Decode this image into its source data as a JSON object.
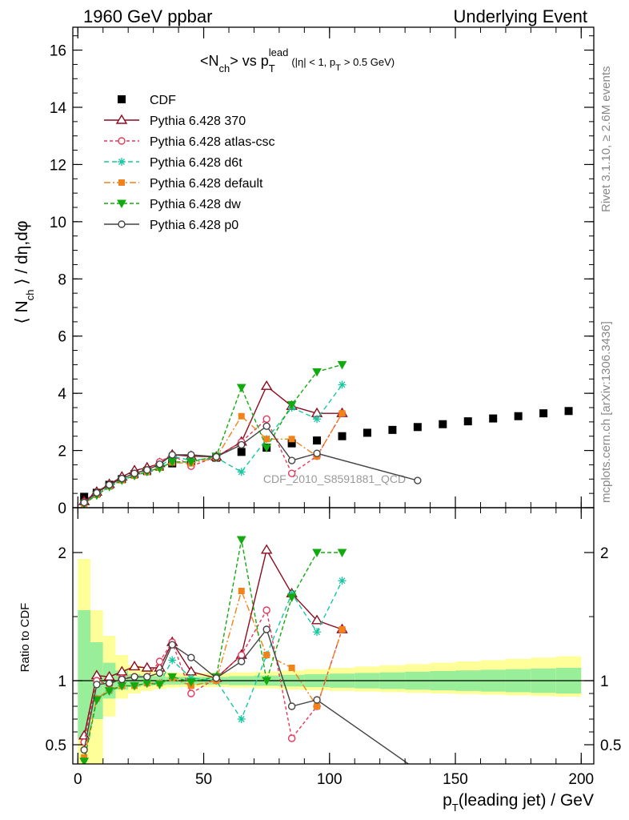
{
  "header": {
    "left": "1960 GeV ppbar",
    "right": "Underlying Event"
  },
  "side_labels": {
    "rivet": "Rivet 3.1.10, ≥ 2.6M events",
    "mcplots": "mcplots.cern.ch [arXiv:1306.3436]"
  },
  "watermark": "CDF_2010_S8591881_QCD",
  "chart_data": [
    {
      "type": "line",
      "panel": "main",
      "title": "<N_ch> vs p_T^lead (|η| < 1, p_T > 0.5 GeV)",
      "title_parts": {
        "a": "<N",
        "a_sub": "ch",
        "b": "> vs p",
        "b_sub": "T",
        "b_sup": "lead",
        "c": "(|η| < 1, p",
        "c_sub": "T",
        "d": "> 0.5 GeV)"
      },
      "ylabel": "⟨ N_ch ⟩ / dη,dφ",
      "ylabel_parts": {
        "a": "⟨ N",
        "sub": "ch",
        "b": " ⟩ / dη,dφ"
      },
      "xlim": [
        -2,
        205
      ],
      "ylim": [
        0,
        16.8
      ],
      "yticks": [
        "0",
        "2",
        "4",
        "6",
        "8",
        "10",
        "12",
        "14",
        "16"
      ],
      "legend_position": "top-left",
      "reference": {
        "name": "CDF",
        "color": "#000000",
        "x": [
          2.5,
          7.5,
          12.5,
          17.5,
          22.5,
          27.5,
          32.5,
          37.5,
          45,
          55,
          65,
          75,
          85,
          95,
          105,
          115,
          125,
          135,
          145,
          155,
          165,
          175,
          185,
          195
        ],
        "y": [
          0.38,
          0.52,
          0.8,
          1.0,
          1.17,
          1.28,
          1.43,
          1.55,
          1.62,
          1.75,
          1.95,
          2.1,
          2.25,
          2.35,
          2.5,
          2.62,
          2.72,
          2.82,
          2.92,
          3.02,
          3.12,
          3.2,
          3.3,
          3.38
        ]
      },
      "series": [
        {
          "name": "Pythia 6.428 370",
          "color": "#8b0c1e",
          "dash": "",
          "marker": "triangle",
          "x": [
            2.5,
            7.5,
            12.5,
            17.5,
            22.5,
            27.5,
            32.5,
            37.5,
            45,
            55,
            65,
            75,
            85,
            95,
            105
          ],
          "y": [
            0.22,
            0.55,
            0.82,
            1.08,
            1.3,
            1.4,
            1.55,
            1.85,
            1.8,
            1.78,
            2.3,
            4.25,
            3.55,
            3.3,
            3.3
          ]
        },
        {
          "name": "Pythia 6.428 atlas-csc",
          "color": "#e8365b",
          "dash": "4,3",
          "marker": "circle-open",
          "x": [
            2.5,
            7.5,
            12.5,
            17.5,
            22.5,
            27.5,
            32.5,
            37.5,
            45,
            55,
            65,
            75,
            85,
            95,
            105
          ],
          "y": [
            0.2,
            0.52,
            0.78,
            1.02,
            1.2,
            1.32,
            1.6,
            1.85,
            1.45,
            1.78,
            2.3,
            3.1,
            1.2,
            1.8,
            3.3
          ]
        },
        {
          "name": "Pythia 6.428 d6t",
          "color": "#16c7a0",
          "dash": "6,4",
          "marker": "star",
          "x": [
            2.5,
            7.5,
            12.5,
            17.5,
            22.5,
            27.5,
            32.5,
            37.5,
            45,
            55,
            65,
            75,
            85,
            95,
            105
          ],
          "y": [
            0.15,
            0.45,
            0.72,
            0.98,
            1.12,
            1.25,
            1.4,
            1.8,
            1.65,
            1.75,
            1.25,
            2.4,
            3.5,
            3.1,
            4.3
          ]
        },
        {
          "name": "Pythia 6.428 default",
          "color": "#f2821a",
          "dash": "8,3,2,3",
          "marker": "square",
          "x": [
            2.5,
            7.5,
            12.5,
            17.5,
            22.5,
            27.5,
            32.5,
            37.5,
            45,
            55,
            65,
            75,
            85,
            95,
            105
          ],
          "y": [
            0.14,
            0.45,
            0.75,
            0.96,
            1.12,
            1.26,
            1.4,
            1.58,
            1.55,
            1.75,
            3.2,
            2.4,
            2.4,
            1.8,
            3.3
          ]
        },
        {
          "name": "Pythia 6.428 dw",
          "color": "#13aa10",
          "dash": "5,3",
          "marker": "triangle-down",
          "x": [
            2.5,
            7.5,
            12.5,
            17.5,
            22.5,
            27.5,
            32.5,
            37.5,
            45,
            55,
            65,
            75,
            85,
            95,
            105
          ],
          "y": [
            0.14,
            0.44,
            0.74,
            0.96,
            1.12,
            1.26,
            1.38,
            1.6,
            1.6,
            1.8,
            4.2,
            2.1,
            3.6,
            4.75,
            5.0
          ]
        },
        {
          "name": "Pythia 6.428 p0",
          "color": "#444444",
          "dash": "",
          "marker": "circle-open",
          "x": [
            2.5,
            7.5,
            12.5,
            17.5,
            22.5,
            27.5,
            32.5,
            37.5,
            45,
            55,
            65,
            75,
            85,
            95,
            135
          ],
          "y": [
            0.18,
            0.52,
            0.8,
            1.02,
            1.2,
            1.32,
            1.52,
            1.85,
            1.85,
            1.78,
            2.2,
            2.85,
            1.65,
            1.9,
            0.95
          ]
        }
      ]
    },
    {
      "type": "line",
      "panel": "ratio",
      "ylabel": "Ratio to CDF",
      "xlabel": "p_T(leading jet) / GeV",
      "xlabel_parts": {
        "a": "p",
        "sub": "T",
        "b": "(leading jet) / GeV"
      },
      "xlim": [
        -2,
        205
      ],
      "ylim": [
        0.35,
        2.35
      ],
      "yticks": [
        "0.5",
        "1",
        "2"
      ],
      "xticks": [
        "0",
        "50",
        "100",
        "150",
        "200"
      ],
      "band": {
        "x_edges": [
          0,
          5,
          10,
          15,
          20,
          25,
          30,
          35,
          40,
          50,
          60,
          70,
          80,
          90,
          100,
          110,
          120,
          130,
          140,
          150,
          160,
          170,
          180,
          190,
          200
        ],
        "inner_lo": [
          0.55,
          0.7,
          0.86,
          0.93,
          0.95,
          0.96,
          0.965,
          0.97,
          0.97,
          0.97,
          0.965,
          0.96,
          0.955,
          0.95,
          0.945,
          0.94,
          0.935,
          0.93,
          0.925,
          0.92,
          0.915,
          0.91,
          0.905,
          0.9
        ],
        "inner_hi": [
          1.55,
          1.3,
          1.14,
          1.08,
          1.05,
          1.04,
          1.035,
          1.03,
          1.03,
          1.03,
          1.035,
          1.04,
          1.045,
          1.05,
          1.055,
          1.06,
          1.065,
          1.07,
          1.075,
          1.08,
          1.085,
          1.09,
          1.095,
          1.1
        ],
        "outer_lo": [
          0.3,
          0.3,
          0.72,
          0.86,
          0.9,
          0.92,
          0.935,
          0.945,
          0.95,
          0.95,
          0.945,
          0.94,
          0.93,
          0.925,
          0.92,
          0.915,
          0.91,
          0.905,
          0.9,
          0.895,
          0.89,
          0.885,
          0.88,
          0.875
        ],
        "outer_hi": [
          1.95,
          1.55,
          1.35,
          1.2,
          1.12,
          1.09,
          1.075,
          1.065,
          1.06,
          1.06,
          1.065,
          1.07,
          1.08,
          1.09,
          1.1,
          1.11,
          1.12,
          1.13,
          1.14,
          1.15,
          1.16,
          1.17,
          1.18,
          1.19
        ],
        "inner_color": "#99ee99",
        "outer_color": "#ffff99"
      },
      "series": [
        {
          "name": "Pythia 6.428 370",
          "color": "#8b0c1e",
          "dash": "",
          "marker": "triangle",
          "x": [
            2.5,
            7.5,
            12.5,
            17.5,
            22.5,
            27.5,
            32.5,
            37.5,
            45,
            55,
            65,
            75,
            85,
            95,
            105
          ],
          "y": [
            0.57,
            1.04,
            1.03,
            1.07,
            1.11,
            1.1,
            1.1,
            1.3,
            1.07,
            1.02,
            1.2,
            2.02,
            1.68,
            1.47,
            1.4
          ]
        },
        {
          "name": "Pythia 6.428 atlas-csc",
          "color": "#e8365b",
          "dash": "4,3",
          "marker": "circle-open",
          "x": [
            2.5,
            7.5,
            12.5,
            17.5,
            22.5,
            27.5,
            32.5,
            37.5,
            45,
            55,
            65,
            75,
            85,
            95,
            105
          ],
          "y": [
            0.52,
            1.0,
            0.97,
            1.02,
            1.03,
            1.03,
            1.15,
            1.3,
            0.9,
            1.02,
            1.2,
            1.55,
            0.55,
            0.8,
            1.4
          ]
        },
        {
          "name": "Pythia 6.428 d6t",
          "color": "#16c7a0",
          "dash": "6,4",
          "marker": "star",
          "x": [
            2.5,
            7.5,
            12.5,
            17.5,
            22.5,
            27.5,
            32.5,
            37.5,
            45,
            55,
            65,
            75,
            85,
            95,
            105
          ],
          "y": [
            0.39,
            0.86,
            0.92,
            0.96,
            0.96,
            0.98,
            0.98,
            1.16,
            1.02,
            1.0,
            0.7,
            1.2,
            1.68,
            1.38,
            1.78
          ]
        },
        {
          "name": "Pythia 6.428 default",
          "color": "#f2821a",
          "dash": "8,3,2,3",
          "marker": "square",
          "x": [
            2.5,
            7.5,
            12.5,
            17.5,
            22.5,
            27.5,
            32.5,
            37.5,
            45,
            55,
            65,
            75,
            85,
            95,
            105
          ],
          "y": [
            0.4,
            0.86,
            0.93,
            0.96,
            0.96,
            0.98,
            0.98,
            1.02,
            0.96,
            1.0,
            1.7,
            1.2,
            1.1,
            0.8,
            1.4
          ]
        },
        {
          "name": "Pythia 6.428 dw",
          "color": "#13aa10",
          "dash": "5,3",
          "marker": "triangle-down",
          "x": [
            2.5,
            7.5,
            12.5,
            17.5,
            22.5,
            27.5,
            32.5,
            37.5,
            45,
            55,
            65,
            75,
            85,
            95,
            105
          ],
          "y": [
            0.37,
            0.85,
            0.92,
            0.96,
            0.96,
            0.98,
            0.97,
            1.03,
            0.99,
            1.03,
            2.1,
            1.0,
            1.65,
            2.0,
            2.0
          ]
        },
        {
          "name": "Pythia 6.428 p0",
          "color": "#444444",
          "dash": "",
          "marker": "circle-open",
          "x": [
            2.5,
            7.5,
            12.5,
            17.5,
            22.5,
            27.5,
            32.5,
            37.5,
            45,
            55,
            65,
            75,
            85,
            95,
            135
          ],
          "y": [
            0.46,
            0.97,
            0.98,
            1.01,
            1.03,
            1.03,
            1.06,
            1.28,
            1.18,
            1.02,
            1.15,
            1.4,
            0.8,
            0.85,
            0.3
          ]
        }
      ]
    }
  ]
}
